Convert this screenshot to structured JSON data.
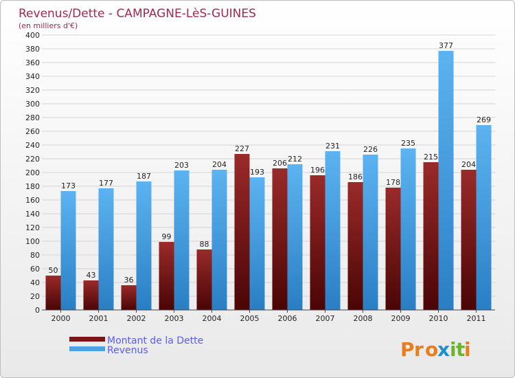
{
  "chart_data": {
    "type": "bar",
    "title": "Revenus/Dette - CAMPAGNE-LèS-GUINES",
    "subtitle": "(en milliers d'€)",
    "categories": [
      "2000",
      "2001",
      "2002",
      "2003",
      "2004",
      "2005",
      "2006",
      "2007",
      "2008",
      "2009",
      "2010",
      "2011"
    ],
    "series": [
      {
        "name": "Montant de la Dette",
        "color": "#7a1515",
        "values": [
          50,
          43,
          36,
          99,
          88,
          227,
          206,
          196,
          186,
          178,
          215,
          204
        ]
      },
      {
        "name": "Revenus",
        "color": "#4aa3e6",
        "values": [
          173,
          177,
          187,
          203,
          204,
          193,
          212,
          231,
          226,
          235,
          377,
          269
        ]
      }
    ],
    "ylim": [
      0,
      400
    ],
    "ytick_step": 20,
    "grid": true,
    "legend_position": "bottom-left"
  },
  "brand": {
    "letters": [
      "P",
      "r",
      "o",
      "x",
      "i",
      "t",
      "i"
    ],
    "colors": [
      "#e87d1e",
      "#e87d1e",
      "#e87d1e",
      "#1f8fd1",
      "#6bb52a",
      "#6bb52a",
      "#e87d1e"
    ]
  }
}
